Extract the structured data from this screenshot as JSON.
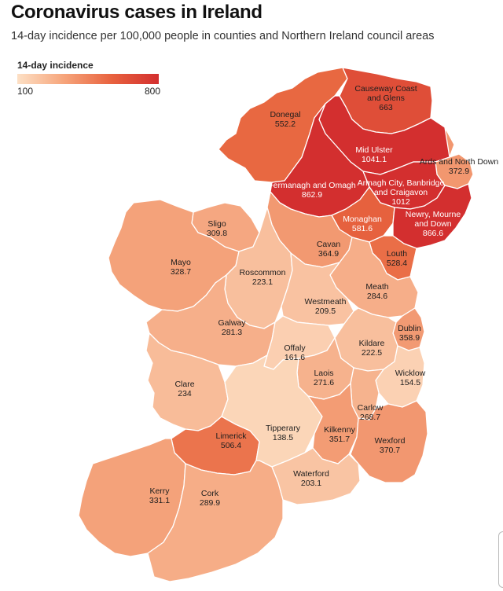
{
  "header": {
    "title": "Coronavirus cases in Ireland",
    "subtitle": "14-day incidence per 100,000 people in counties and Northern Ireland council areas"
  },
  "legend": {
    "title": "14-day incidence",
    "min": "100",
    "max": "800"
  },
  "colors": {
    "low": "#fde0c5",
    "mid": "#f4a27a",
    "high": "#e8663f",
    "very_high": "#d32f2f",
    "border": "#ffffff"
  },
  "regions": [
    {
      "name": "Donegal",
      "value": "552.2",
      "level": 552.2
    },
    {
      "name": "Causeway Coast and Glens",
      "name_line1": "Causeway Coast",
      "name_line2": "and Glens",
      "value": "663",
      "level": 663
    },
    {
      "name": "Mid Ulster",
      "value": "1041.1",
      "level": 1041.1
    },
    {
      "name": "Ards and North Down",
      "value": "372.9",
      "level": 372.9
    },
    {
      "name": "Fermanagh and Omagh",
      "value": "862.9",
      "level": 862.9
    },
    {
      "name": "Armagh City, Banbridge and Craigavon",
      "name_line1": "Armagh City, Banbridge",
      "name_line2": "and Craigavon",
      "value": "1012",
      "level": 1012
    },
    {
      "name": "Monaghan",
      "value": "581.6",
      "level": 581.6
    },
    {
      "name": "Newry, Mourne and Down",
      "name_line1": "Newry, Mourne",
      "name_line2": "and Down",
      "value": "866.6",
      "level": 866.6
    },
    {
      "name": "Sligo",
      "value": "309.8",
      "level": 309.8
    },
    {
      "name": "Cavan",
      "value": "364.9",
      "level": 364.9
    },
    {
      "name": "Louth",
      "value": "528.4",
      "level": 528.4
    },
    {
      "name": "Mayo",
      "value": "328.7",
      "level": 328.7
    },
    {
      "name": "Roscommon",
      "value": "223.1",
      "level": 223.1
    },
    {
      "name": "Meath",
      "value": "284.6",
      "level": 284.6
    },
    {
      "name": "Westmeath",
      "value": "209.5",
      "level": 209.5
    },
    {
      "name": "Galway",
      "value": "281.3",
      "level": 281.3
    },
    {
      "name": "Dublin",
      "value": "358.9",
      "level": 358.9
    },
    {
      "name": "Offaly",
      "value": "161.6",
      "level": 161.6
    },
    {
      "name": "Kildare",
      "value": "222.5",
      "level": 222.5
    },
    {
      "name": "Laois",
      "value": "271.6",
      "level": 271.6
    },
    {
      "name": "Wicklow",
      "value": "154.5",
      "level": 154.5
    },
    {
      "name": "Clare",
      "value": "234",
      "level": 234
    },
    {
      "name": "Carlow",
      "value": "268.7",
      "level": 268.7
    },
    {
      "name": "Limerick",
      "value": "506.4",
      "level": 506.4
    },
    {
      "name": "Tipperary",
      "value": "138.5",
      "level": 138.5
    },
    {
      "name": "Kilkenny",
      "value": "351.7",
      "level": 351.7
    },
    {
      "name": "Wexford",
      "value": "370.7",
      "level": 370.7
    },
    {
      "name": "Kerry",
      "value": "331.1",
      "level": 331.1
    },
    {
      "name": "Cork",
      "value": "289.9",
      "level": 289.9
    },
    {
      "name": "Waterford",
      "value": "203.1",
      "level": 203.1
    }
  ]
}
